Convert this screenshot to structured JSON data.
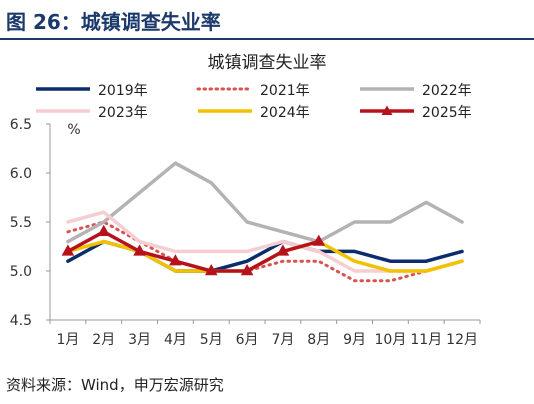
{
  "figure": {
    "title": "图 26：城镇调查失业率",
    "source": "资料来源：Wind，申万宏源研究"
  },
  "chart_data": {
    "type": "line",
    "title": "城镇调查失业率",
    "ylabel": "%",
    "ylim": [
      4.5,
      6.5
    ],
    "yticks": [
      "4.5",
      "5.0",
      "5.5",
      "6.0",
      "6.5"
    ],
    "categories": [
      "1月",
      "2月",
      "3月",
      "4月",
      "5月",
      "6月",
      "7月",
      "8月",
      "9月",
      "10月",
      "11月",
      "12月"
    ],
    "grid": false,
    "legend_position": "top",
    "series": [
      {
        "name": "2019年",
        "color": "#0b2d6b",
        "style": "solid",
        "width": 3.5,
        "values": [
          5.1,
          5.3,
          5.2,
          5.0,
          5.0,
          5.1,
          5.3,
          5.2,
          5.2,
          5.1,
          5.1,
          5.2
        ]
      },
      {
        "name": "2021年",
        "color": "#d9534f",
        "style": "dotted",
        "width": 3,
        "values": [
          5.4,
          5.5,
          5.3,
          5.1,
          5.0,
          5.0,
          5.1,
          5.1,
          4.9,
          4.9,
          5.0,
          5.1
        ]
      },
      {
        "name": "2022年",
        "color": "#b3b3b3",
        "style": "solid",
        "width": 3.5,
        "values": [
          5.3,
          5.5,
          5.8,
          6.1,
          5.9,
          5.5,
          5.4,
          5.3,
          5.5,
          5.5,
          5.7,
          5.5
        ]
      },
      {
        "name": "2023年",
        "color": "#f6cdd2",
        "style": "solid",
        "width": 3.5,
        "values": [
          5.5,
          5.6,
          5.3,
          5.2,
          5.2,
          5.2,
          5.3,
          5.2,
          5.0,
          5.0,
          5.0,
          5.1
        ]
      },
      {
        "name": "2024年",
        "color": "#f2c200",
        "style": "solid",
        "width": 3.5,
        "values": [
          5.2,
          5.3,
          5.2,
          5.0,
          5.0,
          5.0,
          5.2,
          5.3,
          5.1,
          5.0,
          5.0,
          5.1
        ]
      },
      {
        "name": "2025年",
        "color": "#b5121b",
        "style": "solid",
        "width": 3.5,
        "marker": "triangle",
        "values": [
          5.2,
          5.4,
          5.2,
          5.1,
          5.0,
          5.0,
          5.2,
          5.3,
          null,
          null,
          null,
          null
        ]
      }
    ]
  }
}
